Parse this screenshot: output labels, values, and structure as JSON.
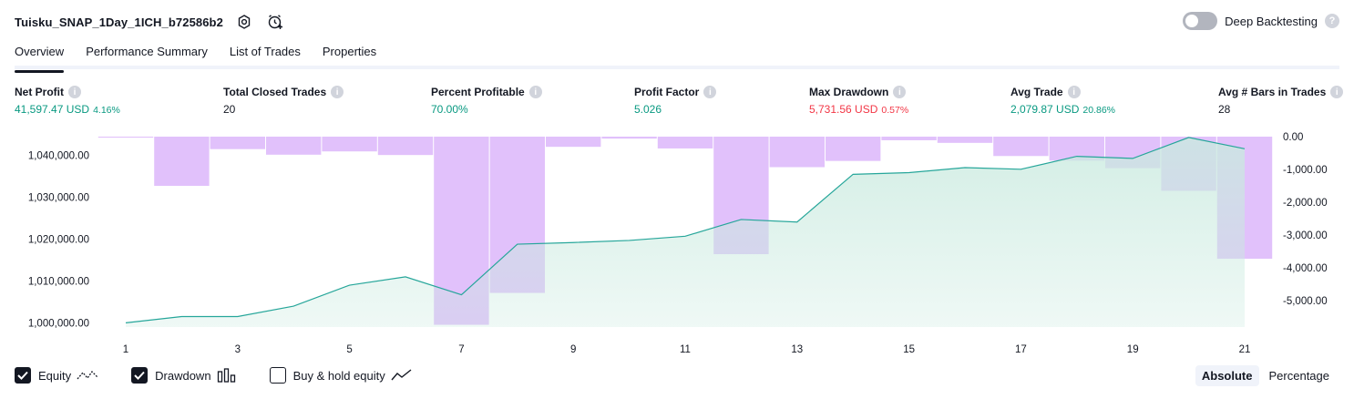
{
  "header": {
    "title": "Tuisku_SNAP_1Day_1ICH_b72586b2"
  },
  "deep_backtesting": {
    "label": "Deep Backtesting",
    "enabled": false
  },
  "tabs": [
    {
      "label": "Overview",
      "active": true
    },
    {
      "label": "Performance Summary",
      "active": false
    },
    {
      "label": "List of Trades",
      "active": false
    },
    {
      "label": "Properties",
      "active": false
    }
  ],
  "metrics": {
    "net_profit": {
      "label": "Net Profit",
      "value": "41,597.47 USD",
      "pct": "4.16%"
    },
    "total_closed_trades": {
      "label": "Total Closed Trades",
      "value": "20"
    },
    "percent_profitable": {
      "label": "Percent Profitable",
      "value": "70.00%"
    },
    "profit_factor": {
      "label": "Profit Factor",
      "value": "5.026"
    },
    "max_drawdown": {
      "label": "Max Drawdown",
      "value": "5,731.56 USD",
      "pct": "0.57%"
    },
    "avg_trade": {
      "label": "Avg Trade",
      "value": "2,079.87 USD",
      "pct": "20.86%"
    },
    "avg_bars": {
      "label": "Avg # Bars in Trades",
      "value": "28"
    }
  },
  "legend": {
    "equity": {
      "label": "Equity",
      "checked": true
    },
    "drawdown": {
      "label": "Drawdown",
      "checked": true
    },
    "buy_hold": {
      "label": "Buy & hold equity",
      "checked": false
    }
  },
  "mode": {
    "absolute": "Absolute",
    "percentage": "Percentage",
    "selected": "Absolute"
  },
  "colors": {
    "equity_line": "#26a69a",
    "equity_fill": "#c9eadf",
    "drawdown_bar": "#e1c1fb",
    "profit_green": "#089981",
    "loss_red": "#f23645",
    "axis_text": "#131722"
  },
  "chart_data": {
    "type": "line",
    "x_ticks": [
      "1",
      "3",
      "5",
      "7",
      "9",
      "11",
      "13",
      "15",
      "17",
      "19",
      "21"
    ],
    "left_axis_ticks": [
      "1,040,000.00",
      "1,030,000.00",
      "1,020,000.00",
      "1,010,000.00",
      "1,000,000.00"
    ],
    "right_axis_ticks": [
      "0.00",
      "-1,000.00",
      "-2,000.00",
      "-3,000.00",
      "-4,000.00",
      "-5,000.00"
    ],
    "left_ylim": [
      999000,
      1044500
    ],
    "right_ylim": [
      -5800,
      0
    ],
    "series": [
      {
        "name": "Equity",
        "axis": "left",
        "x": [
          1,
          2,
          3,
          4,
          5,
          6,
          7,
          8,
          9,
          10,
          11,
          12,
          13,
          14,
          15,
          16,
          17,
          18,
          19,
          20,
          21
        ],
        "values": [
          1000000,
          1001500,
          1001500,
          1004000,
          1009000,
          1011000,
          1006700,
          1018800,
          1019200,
          1019700,
          1020700,
          1024700,
          1024100,
          1035500,
          1035900,
          1037100,
          1036700,
          1039800,
          1039300,
          1044300,
          1041600
        ]
      },
      {
        "name": "Drawdown",
        "axis": "right",
        "type": "bar",
        "x": [
          1,
          2,
          3,
          4,
          5,
          6,
          7,
          8,
          9,
          10,
          11,
          12,
          13,
          14,
          15,
          16,
          17,
          18,
          19,
          20,
          21
        ],
        "values": [
          -30,
          -1500,
          -380,
          -550,
          -450,
          -560,
          -5731.56,
          -4760,
          -310,
          -60,
          -360,
          -3580,
          -930,
          -740,
          -110,
          -190,
          -590,
          -730,
          -960,
          -1650,
          -3720
        ]
      }
    ]
  }
}
